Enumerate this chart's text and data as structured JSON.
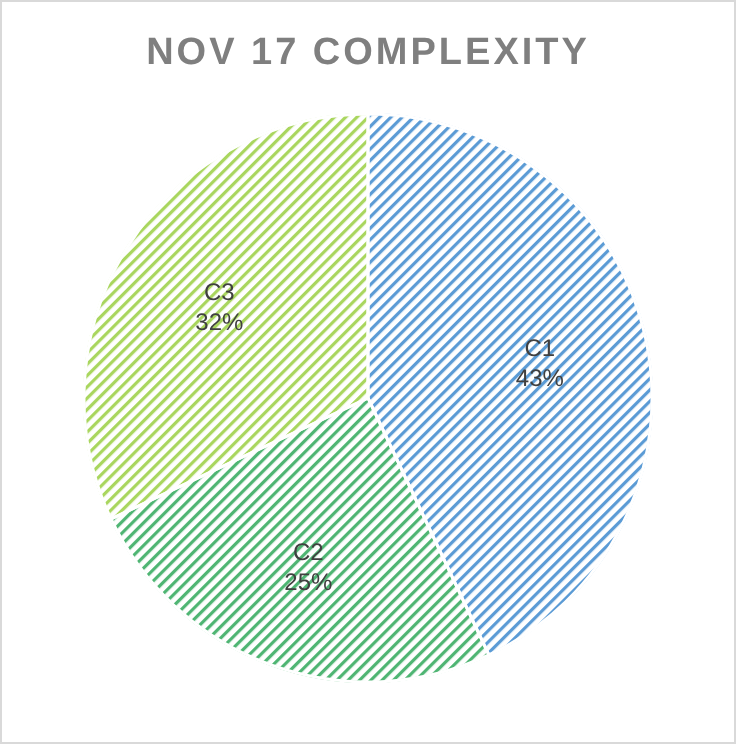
{
  "chart_data": {
    "type": "pie",
    "title": "NOV 17 COMPLEXITY",
    "categories": [
      "C1",
      "C2",
      "C3"
    ],
    "values": [
      43,
      25,
      32
    ],
    "value_labels": [
      "43%",
      "25%",
      "32%"
    ],
    "colors": [
      "#5b9bd5",
      "#4fb573",
      "#a9d65e"
    ],
    "legend": false
  }
}
